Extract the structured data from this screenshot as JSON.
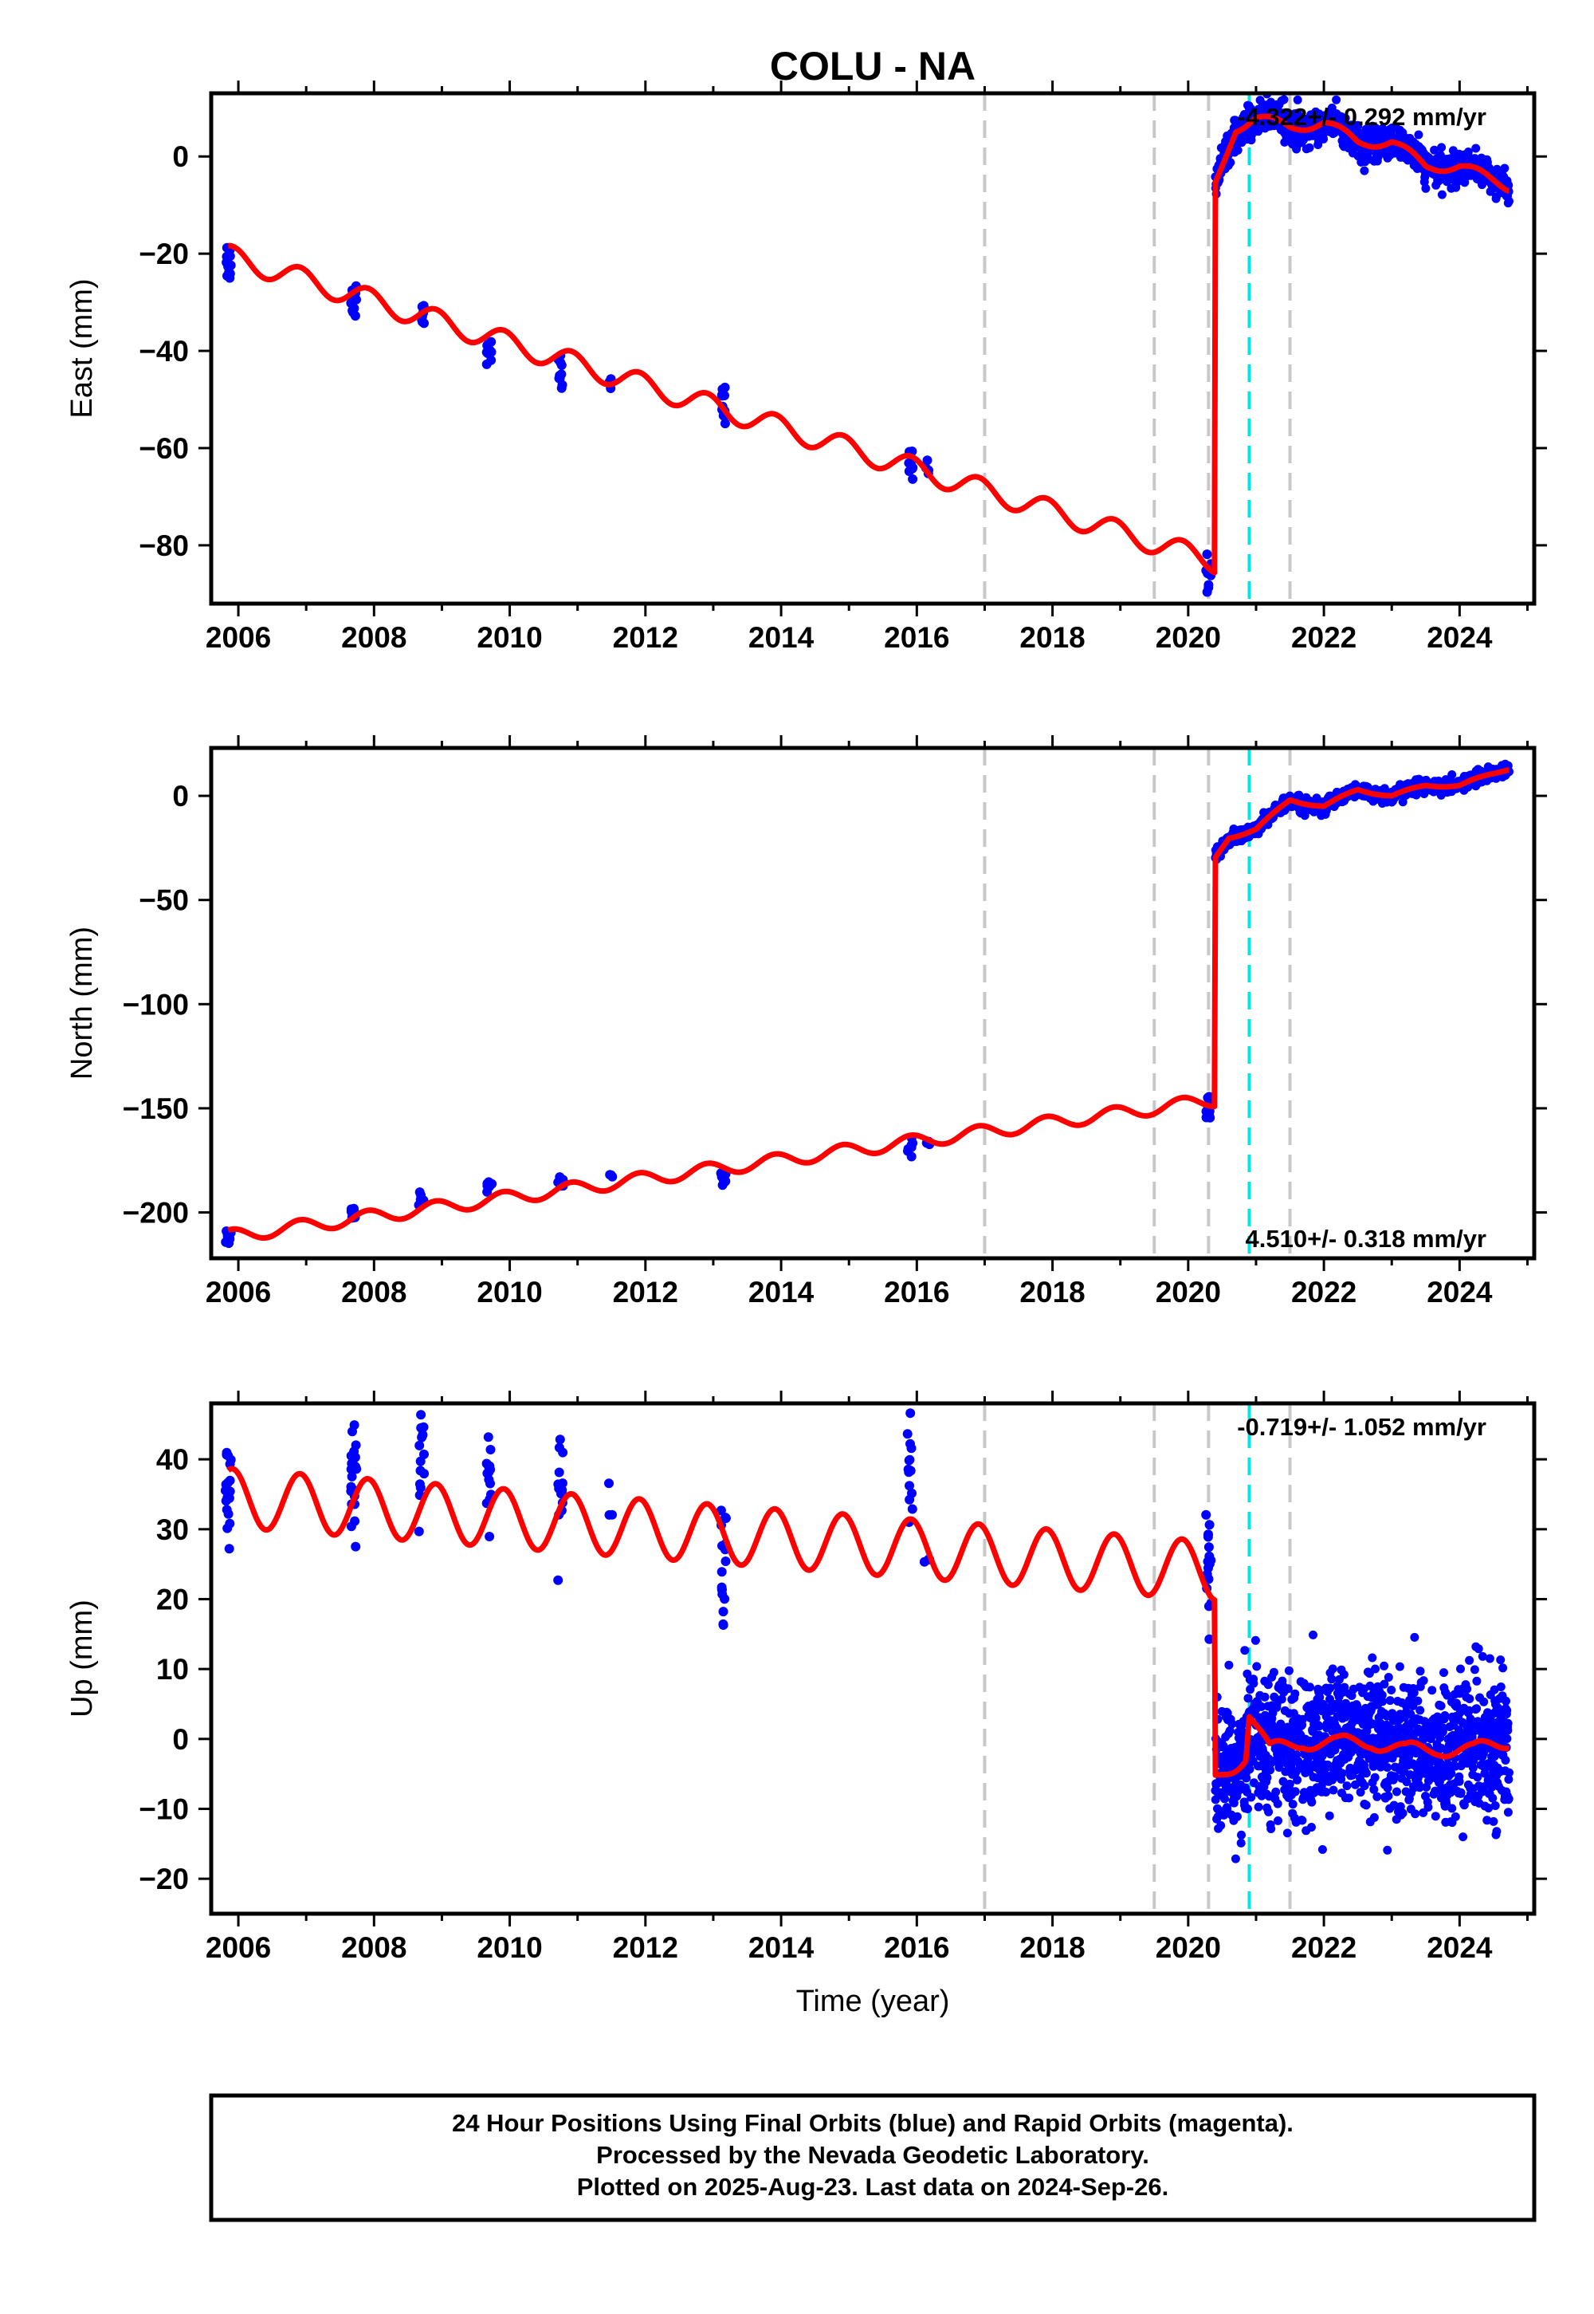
{
  "title": "COLU - NA",
  "colors": {
    "data_points": "#0000ff",
    "model_curve": "#ff0000",
    "equipment_change": "#c8c8c8",
    "earthquake": "#00e6e6",
    "frame": "#000000"
  },
  "x_axis": {
    "label": "Time (year)",
    "range": [
      2005.6,
      2025.1
    ],
    "ticks": [
      2006,
      2008,
      2010,
      2012,
      2014,
      2016,
      2018,
      2020,
      2022,
      2024
    ],
    "tick_labels": [
      "2006",
      "2008",
      "2010",
      "2012",
      "2014",
      "2016",
      "2018",
      "2020",
      "2022",
      "2024"
    ]
  },
  "footer": {
    "line1": "24 Hour Positions Using Final Orbits (blue) and Rapid Orbits (magenta).",
    "line2": "Processed by the Nevada Geodetic Laboratory.",
    "line3": "Plotted on 2025-Aug-23. Last data on 2024-Sep-26."
  },
  "chart_data": [
    {
      "type": "scatter",
      "component": "east",
      "ylabel": "East (mm)",
      "ylim": [
        -92,
        13
      ],
      "yticks": [
        0,
        -20,
        -40,
        -60,
        -80
      ],
      "ytick_labels": [
        "0",
        "−20",
        "−40",
        "−60",
        "−80"
      ],
      "rate_label": "-4.322+/- 0.292 mm/yr",
      "rate_position": "top-right",
      "equipment_changes": [
        2017.0,
        2019.5,
        2020.3,
        2021.5
      ],
      "earthquakes": [
        2020.9
      ],
      "model": {
        "rate": -4.322,
        "pre_offset": -20.5,
        "step_time": 2020.4,
        "step_size": 80,
        "season_amp_pre": 2.3,
        "season_amp_post": 3.0,
        "post_points": [
          [
            2020.4,
            -6
          ],
          [
            2020.7,
            6
          ],
          [
            2021.0,
            8
          ],
          [
            2021.5,
            6
          ],
          [
            2022.0,
            7
          ],
          [
            2022.5,
            3
          ],
          [
            2023.0,
            3
          ],
          [
            2023.5,
            -2
          ],
          [
            2024.0,
            -2
          ],
          [
            2024.7,
            -6
          ]
        ]
      },
      "data_clusters": [
        {
          "x": 2005.85,
          "y": -21.5,
          "n": 12,
          "spread_y": 2.2
        },
        {
          "x": 2007.7,
          "y": -29.5,
          "n": 12,
          "spread_y": 2.2
        },
        {
          "x": 2008.7,
          "y": -32,
          "n": 8,
          "spread_y": 1.3
        },
        {
          "x": 2009.7,
          "y": -39.5,
          "n": 10,
          "spread_y": 2
        },
        {
          "x": 2010.75,
          "y": -44,
          "n": 10,
          "spread_y": 2
        },
        {
          "x": 2011.5,
          "y": -46.5,
          "n": 3,
          "spread_y": 0.5
        },
        {
          "x": 2013.15,
          "y": -51.5,
          "n": 12,
          "spread_y": 2.2
        },
        {
          "x": 2015.9,
          "y": -63,
          "n": 10,
          "spread_y": 1.5
        },
        {
          "x": 2016.15,
          "y": -64,
          "n": 4,
          "spread_y": 0.8
        },
        {
          "x": 2020.3,
          "y": -86,
          "n": 12,
          "spread_y": 2.5
        }
      ],
      "post_data": {
        "start": 2020.4,
        "end": 2024.73,
        "noise": 1.6,
        "n": 900
      }
    },
    {
      "type": "scatter",
      "component": "north",
      "ylabel": "North (mm)",
      "ylim": [
        -222,
        23
      ],
      "yticks": [
        0,
        -50,
        -100,
        -150,
        -200
      ],
      "ytick_labels": [
        "0",
        "−50",
        "−100",
        "−150",
        "−200"
      ],
      "rate_label": "4.510+/- 0.318 mm/yr",
      "rate_position": "bottom-right",
      "equipment_changes": [
        2017.0,
        2019.5,
        2020.3,
        2021.5
      ],
      "earthquakes": [
        2020.9
      ],
      "model": {
        "rate": 4.51,
        "pre_offset": -211.5,
        "step_time": 2020.4,
        "step_size": 120,
        "season_amp_pre": 3.2,
        "season_amp_post": 2.0,
        "post_points": [
          [
            2020.4,
            -30
          ],
          [
            2020.6,
            -20
          ],
          [
            2021.0,
            -16
          ],
          [
            2021.5,
            -2
          ],
          [
            2022.0,
            -5
          ],
          [
            2022.5,
            3
          ],
          [
            2023.0,
            0
          ],
          [
            2023.5,
            5
          ],
          [
            2024.0,
            5
          ],
          [
            2024.7,
            13
          ]
        ]
      },
      "data_clusters": [
        {
          "x": 2005.85,
          "y": -212,
          "n": 10,
          "spread_y": 2
        },
        {
          "x": 2007.7,
          "y": -201,
          "n": 10,
          "spread_y": 2.5
        },
        {
          "x": 2008.7,
          "y": -195,
          "n": 8,
          "spread_y": 1.5
        },
        {
          "x": 2009.7,
          "y": -187,
          "n": 8,
          "spread_y": 1.8
        },
        {
          "x": 2010.75,
          "y": -186,
          "n": 8,
          "spread_y": 2
        },
        {
          "x": 2011.5,
          "y": -182,
          "n": 3,
          "spread_y": 0.5
        },
        {
          "x": 2013.15,
          "y": -182,
          "n": 10,
          "spread_y": 2.5
        },
        {
          "x": 2015.9,
          "y": -169,
          "n": 8,
          "spread_y": 2
        },
        {
          "x": 2016.15,
          "y": -167,
          "n": 3,
          "spread_y": 0.5
        },
        {
          "x": 2020.3,
          "y": -150,
          "n": 12,
          "spread_y": 2.5
        }
      ],
      "post_data": {
        "start": 2020.4,
        "end": 2024.73,
        "noise": 1.6,
        "n": 900
      }
    },
    {
      "type": "scatter",
      "component": "up",
      "ylabel": "Up (mm)",
      "ylim": [
        -25,
        48
      ],
      "yticks": [
        40,
        30,
        20,
        10,
        0,
        -10,
        -20
      ],
      "ytick_labels": [
        "40",
        "30",
        "20",
        "10",
        "0",
        "−10",
        "−20"
      ],
      "rate_label": "-0.719+/- 1.052 mm/yr",
      "rate_position": "top-right",
      "equipment_changes": [
        2017.0,
        2019.5,
        2020.3,
        2021.5
      ],
      "earthquakes": [
        2020.9
      ],
      "model": {
        "rate": -0.719,
        "pre_offset": 34.5,
        "step_time": 2020.4,
        "step_size": 32,
        "season_amp_pre": 4.2,
        "season_amp_post": 4.0,
        "post_points": [
          [
            2020.4,
            -6
          ],
          [
            2020.85,
            -2
          ],
          [
            2020.9,
            4
          ],
          [
            2021.2,
            -2
          ],
          [
            2021.7,
            0
          ],
          [
            2022.2,
            -1
          ],
          [
            2022.7,
            0
          ],
          [
            2023.2,
            -2
          ],
          [
            2023.7,
            -1
          ],
          [
            2024.2,
            -2
          ],
          [
            2024.7,
            0
          ]
        ]
      },
      "data_clusters": [
        {
          "x": 2005.85,
          "y": 35,
          "n": 18,
          "spread_y": 3.5
        },
        {
          "x": 2007.7,
          "y": 38,
          "n": 22,
          "spread_y": 5
        },
        {
          "x": 2008.7,
          "y": 41,
          "n": 16,
          "spread_y": 4
        },
        {
          "x": 2009.7,
          "y": 37,
          "n": 14,
          "spread_y": 4
        },
        {
          "x": 2010.75,
          "y": 36,
          "n": 14,
          "spread_y": 4
        },
        {
          "x": 2011.5,
          "y": 33,
          "n": 3,
          "spread_y": 2
        },
        {
          "x": 2013.15,
          "y": 27,
          "n": 18,
          "spread_y": 5
        },
        {
          "x": 2015.9,
          "y": 39,
          "n": 14,
          "spread_y": 4
        },
        {
          "x": 2016.15,
          "y": 26,
          "n": 3,
          "spread_y": 1.5
        },
        {
          "x": 2020.3,
          "y": 26,
          "n": 16,
          "spread_y": 4
        }
      ],
      "post_data": {
        "start": 2020.4,
        "end": 2024.73,
        "noise": 4.8,
        "n": 1300
      }
    }
  ]
}
